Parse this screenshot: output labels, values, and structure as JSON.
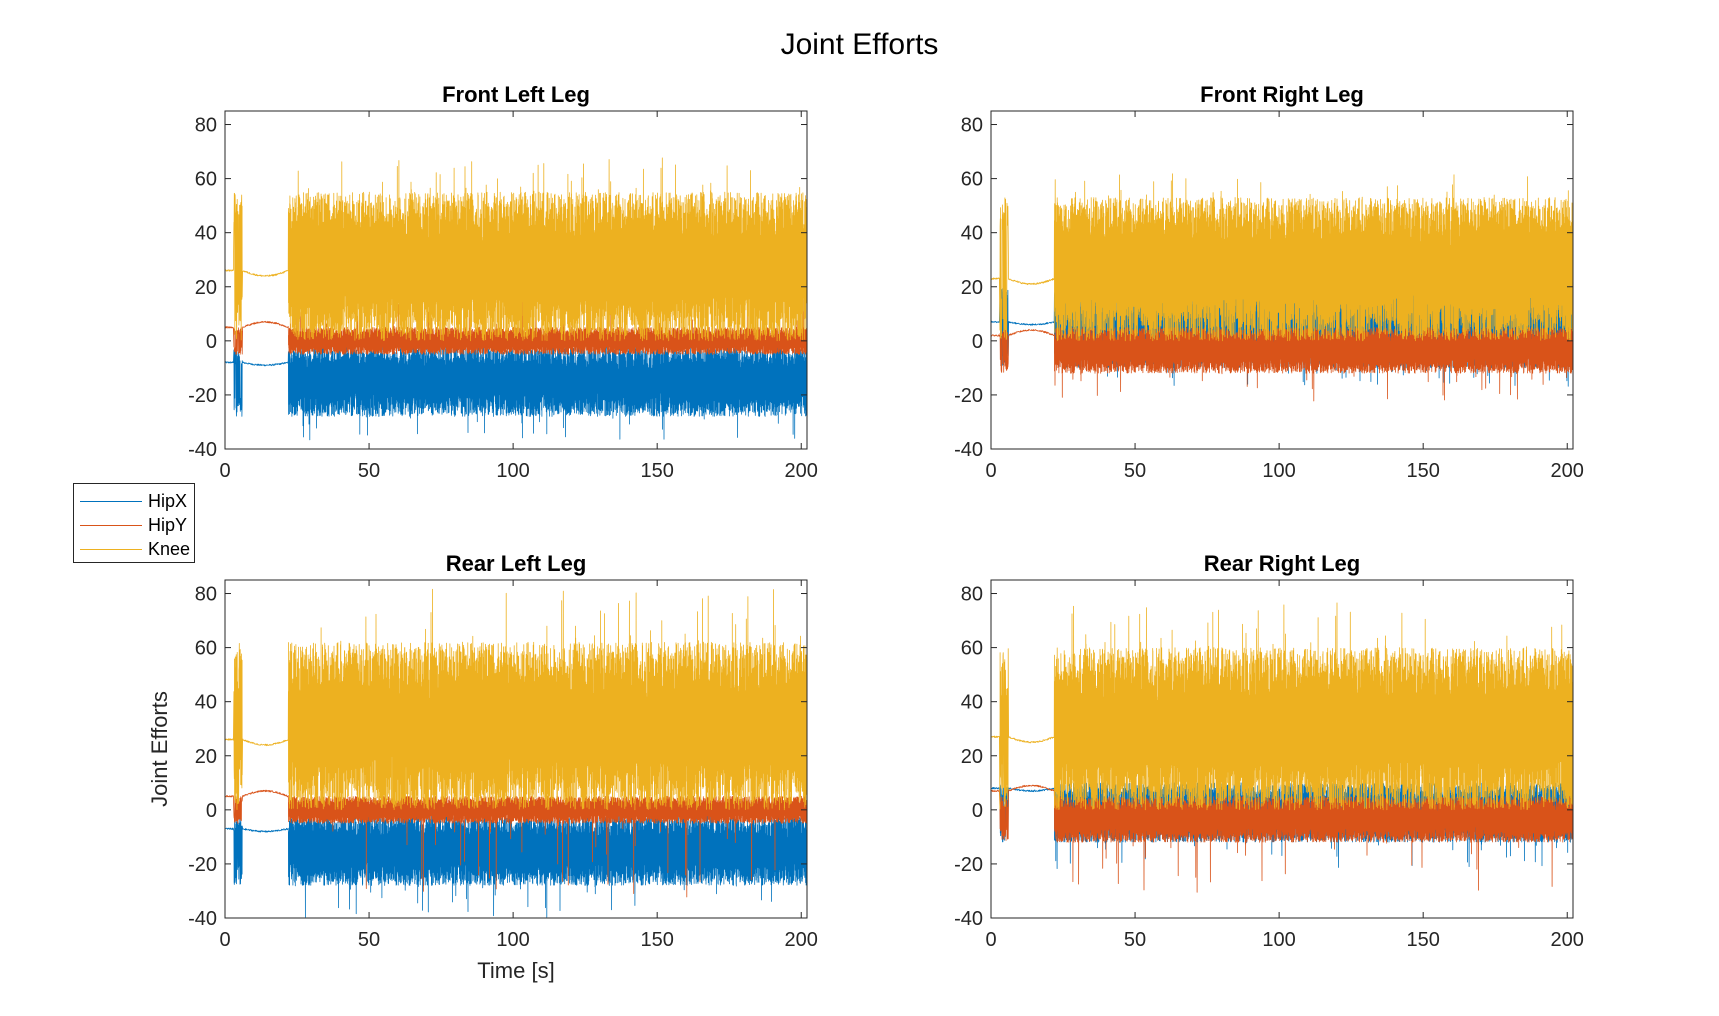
{
  "figure": {
    "title": "Joint Efforts",
    "legend": [
      {
        "name": "HipX",
        "color": "#0072BD"
      },
      {
        "name": "HipY",
        "color": "#D95319"
      },
      {
        "name": "Knee",
        "color": "#EDB120"
      }
    ]
  },
  "chart_data": [
    {
      "type": "line",
      "title": "Front Left Leg",
      "xlabel": "",
      "ylabel": "",
      "xlim": [
        0,
        202
      ],
      "ylim": [
        -40,
        85
      ],
      "xticks": [
        0,
        50,
        100,
        150,
        200
      ],
      "yticks": [
        -40,
        -20,
        0,
        20,
        40,
        60,
        80
      ],
      "series": [
        {
          "name": "HipX",
          "color": "#0072BD",
          "idle_level": -8,
          "active_range": [
            -28,
            -2
          ],
          "spike_min": -37
        },
        {
          "name": "HipY",
          "color": "#D95319",
          "idle_level": 5,
          "active_range": [
            -5,
            5
          ],
          "spike_max": 16
        },
        {
          "name": "Knee",
          "color": "#EDB120",
          "idle_level": 26,
          "active_range": [
            0,
            55
          ],
          "spike_max": 68
        }
      ],
      "startup_end": 22
    },
    {
      "type": "line",
      "title": "Front Right Leg",
      "xlabel": "",
      "ylabel": "",
      "xlim": [
        0,
        202
      ],
      "ylim": [
        -40,
        85
      ],
      "xticks": [
        0,
        50,
        100,
        150,
        200
      ],
      "yticks": [
        -40,
        -20,
        0,
        20,
        40,
        60,
        80
      ],
      "series": [
        {
          "name": "HipX",
          "color": "#0072BD",
          "idle_level": 7,
          "active_range": [
            -10,
            20
          ],
          "spike_min": -17
        },
        {
          "name": "HipY",
          "color": "#D95319",
          "idle_level": 2,
          "active_range": [
            -12,
            5
          ],
          "spike_min": -23
        },
        {
          "name": "Knee",
          "color": "#EDB120",
          "idle_level": 23,
          "active_range": [
            0,
            53
          ],
          "spike_max": 62
        }
      ],
      "startup_end": 22
    },
    {
      "type": "line",
      "title": "Rear Left Leg",
      "xlabel": "Time [s]",
      "ylabel": "Joint Efforts",
      "xlim": [
        0,
        202
      ],
      "ylim": [
        -40,
        85
      ],
      "xticks": [
        0,
        50,
        100,
        150,
        200
      ],
      "yticks": [
        -40,
        -20,
        0,
        20,
        40,
        60,
        80
      ],
      "series": [
        {
          "name": "HipX",
          "color": "#0072BD",
          "idle_level": -7,
          "active_range": [
            -28,
            -2
          ],
          "spike_min": -40
        },
        {
          "name": "HipY",
          "color": "#D95319",
          "idle_level": 5,
          "active_range": [
            -5,
            5
          ],
          "spike_min": -33
        },
        {
          "name": "Knee",
          "color": "#EDB120",
          "idle_level": 26,
          "active_range": [
            0,
            62
          ],
          "spike_max": 83
        }
      ],
      "startup_end": 22
    },
    {
      "type": "line",
      "title": "Rear Right Leg",
      "xlabel": "",
      "ylabel": "",
      "xlim": [
        0,
        202
      ],
      "ylim": [
        -40,
        85
      ],
      "xticks": [
        0,
        50,
        100,
        150,
        200
      ],
      "yticks": [
        -40,
        -20,
        0,
        20,
        40,
        60,
        80
      ],
      "series": [
        {
          "name": "HipX",
          "color": "#0072BD",
          "idle_level": 8,
          "active_range": [
            -12,
            10
          ],
          "spike_min": -22
        },
        {
          "name": "HipY",
          "color": "#D95319",
          "idle_level": 7,
          "active_range": [
            -12,
            5
          ],
          "spike_min": -31
        },
        {
          "name": "Knee",
          "color": "#EDB120",
          "idle_level": 27,
          "active_range": [
            0,
            60
          ],
          "spike_max": 77
        }
      ],
      "startup_end": 22
    }
  ]
}
